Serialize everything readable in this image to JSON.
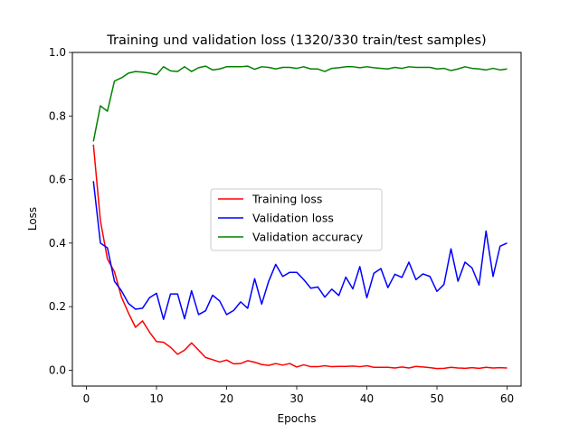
{
  "chart_data": {
    "type": "line",
    "title": "Training und validation loss (1320/330 train/test samples)",
    "xlabel": "Epochs",
    "ylabel": "Loss",
    "xlim": [
      -2,
      62
    ],
    "ylim": [
      -0.05,
      1.0
    ],
    "xticks": [
      0,
      10,
      20,
      30,
      40,
      50,
      60
    ],
    "yticks": [
      0.0,
      0.2,
      0.4,
      0.6,
      0.8,
      1.0
    ],
    "xtick_labels": [
      "0",
      "10",
      "20",
      "30",
      "40",
      "50",
      "60"
    ],
    "ytick_labels": [
      "0.0",
      "0.2",
      "0.4",
      "0.6",
      "0.8",
      "1.0"
    ],
    "grid": false,
    "legend_position": "center-right",
    "x": [
      1,
      2,
      3,
      4,
      5,
      6,
      7,
      8,
      9,
      10,
      11,
      12,
      13,
      14,
      15,
      16,
      17,
      18,
      19,
      20,
      21,
      22,
      23,
      24,
      25,
      26,
      27,
      28,
      29,
      30,
      31,
      32,
      33,
      34,
      35,
      36,
      37,
      38,
      39,
      40,
      41,
      42,
      43,
      44,
      45,
      46,
      47,
      48,
      49,
      50,
      51,
      52,
      53,
      54,
      55,
      56,
      57,
      58,
      59,
      60
    ],
    "series": [
      {
        "name": "Training loss",
        "color": "#ff0000",
        "values": [
          0.71,
          0.47,
          0.35,
          0.31,
          0.23,
          0.18,
          0.135,
          0.155,
          0.12,
          0.09,
          0.088,
          0.072,
          0.05,
          0.063,
          0.086,
          0.063,
          0.04,
          0.033,
          0.026,
          0.032,
          0.02,
          0.021,
          0.03,
          0.025,
          0.018,
          0.015,
          0.021,
          0.016,
          0.021,
          0.01,
          0.017,
          0.011,
          0.011,
          0.014,
          0.011,
          0.012,
          0.012,
          0.013,
          0.011,
          0.014,
          0.009,
          0.009,
          0.009,
          0.007,
          0.01,
          0.007,
          0.012,
          0.01,
          0.008,
          0.005,
          0.006,
          0.009,
          0.007,
          0.006,
          0.008,
          0.006,
          0.009,
          0.007,
          0.008,
          0.007
        ]
      },
      {
        "name": "Validation loss",
        "color": "#0000ff",
        "values": [
          0.595,
          0.4,
          0.385,
          0.28,
          0.25,
          0.21,
          0.192,
          0.195,
          0.228,
          0.242,
          0.16,
          0.24,
          0.24,
          0.162,
          0.25,
          0.175,
          0.187,
          0.236,
          0.218,
          0.175,
          0.188,
          0.215,
          0.195,
          0.288,
          0.208,
          0.28,
          0.333,
          0.295,
          0.308,
          0.308,
          0.285,
          0.258,
          0.262,
          0.23,
          0.255,
          0.235,
          0.293,
          0.256,
          0.326,
          0.228,
          0.305,
          0.32,
          0.26,
          0.302,
          0.292,
          0.34,
          0.285,
          0.303,
          0.295,
          0.248,
          0.27,
          0.382,
          0.28,
          0.34,
          0.322,
          0.268,
          0.438,
          0.295,
          0.39,
          0.4
        ]
      },
      {
        "name": "Validation accuracy",
        "color": "#008000",
        "values": [
          0.72,
          0.832,
          0.815,
          0.91,
          0.92,
          0.935,
          0.94,
          0.938,
          0.935,
          0.93,
          0.955,
          0.942,
          0.94,
          0.955,
          0.94,
          0.952,
          0.957,
          0.945,
          0.948,
          0.955,
          0.955,
          0.955,
          0.957,
          0.947,
          0.955,
          0.953,
          0.948,
          0.953,
          0.953,
          0.95,
          0.955,
          0.948,
          0.948,
          0.94,
          0.95,
          0.952,
          0.955,
          0.955,
          0.952,
          0.955,
          0.952,
          0.95,
          0.948,
          0.953,
          0.95,
          0.955,
          0.953,
          0.953,
          0.953,
          0.948,
          0.95,
          0.943,
          0.948,
          0.955,
          0.95,
          0.948,
          0.945,
          0.95,
          0.945,
          0.948
        ]
      }
    ]
  }
}
